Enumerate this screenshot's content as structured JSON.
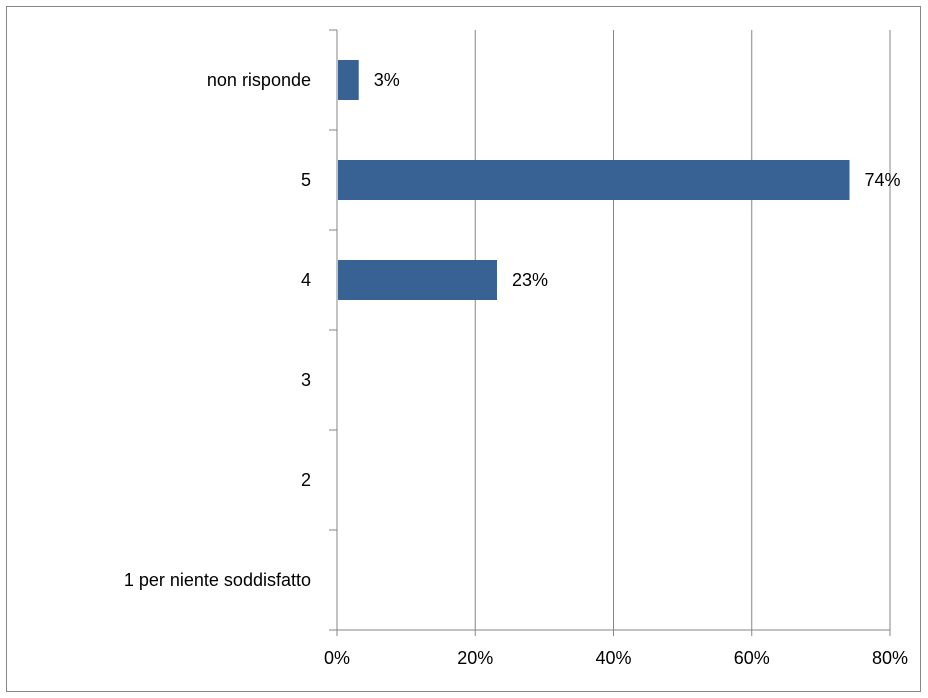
{
  "chart_data": {
    "type": "bar",
    "orientation": "horizontal",
    "categories": [
      "1 per niente soddisfatto",
      "2",
      "3",
      "4",
      "5",
      "non risponde"
    ],
    "values": [
      0,
      0,
      0,
      23,
      74,
      3
    ],
    "data_labels": [
      "",
      "",
      "",
      "23%",
      "74%",
      "3%"
    ],
    "x_tick_labels": [
      "0%",
      "20%",
      "40%",
      "60%",
      "80%"
    ],
    "xlim": [
      0,
      80
    ],
    "grid": "vertical",
    "legend": "none",
    "title": "",
    "xlabel": "",
    "ylabel": "",
    "colors": {
      "bar": "#386293",
      "grid": "#868686",
      "axis": "#868686"
    }
  }
}
